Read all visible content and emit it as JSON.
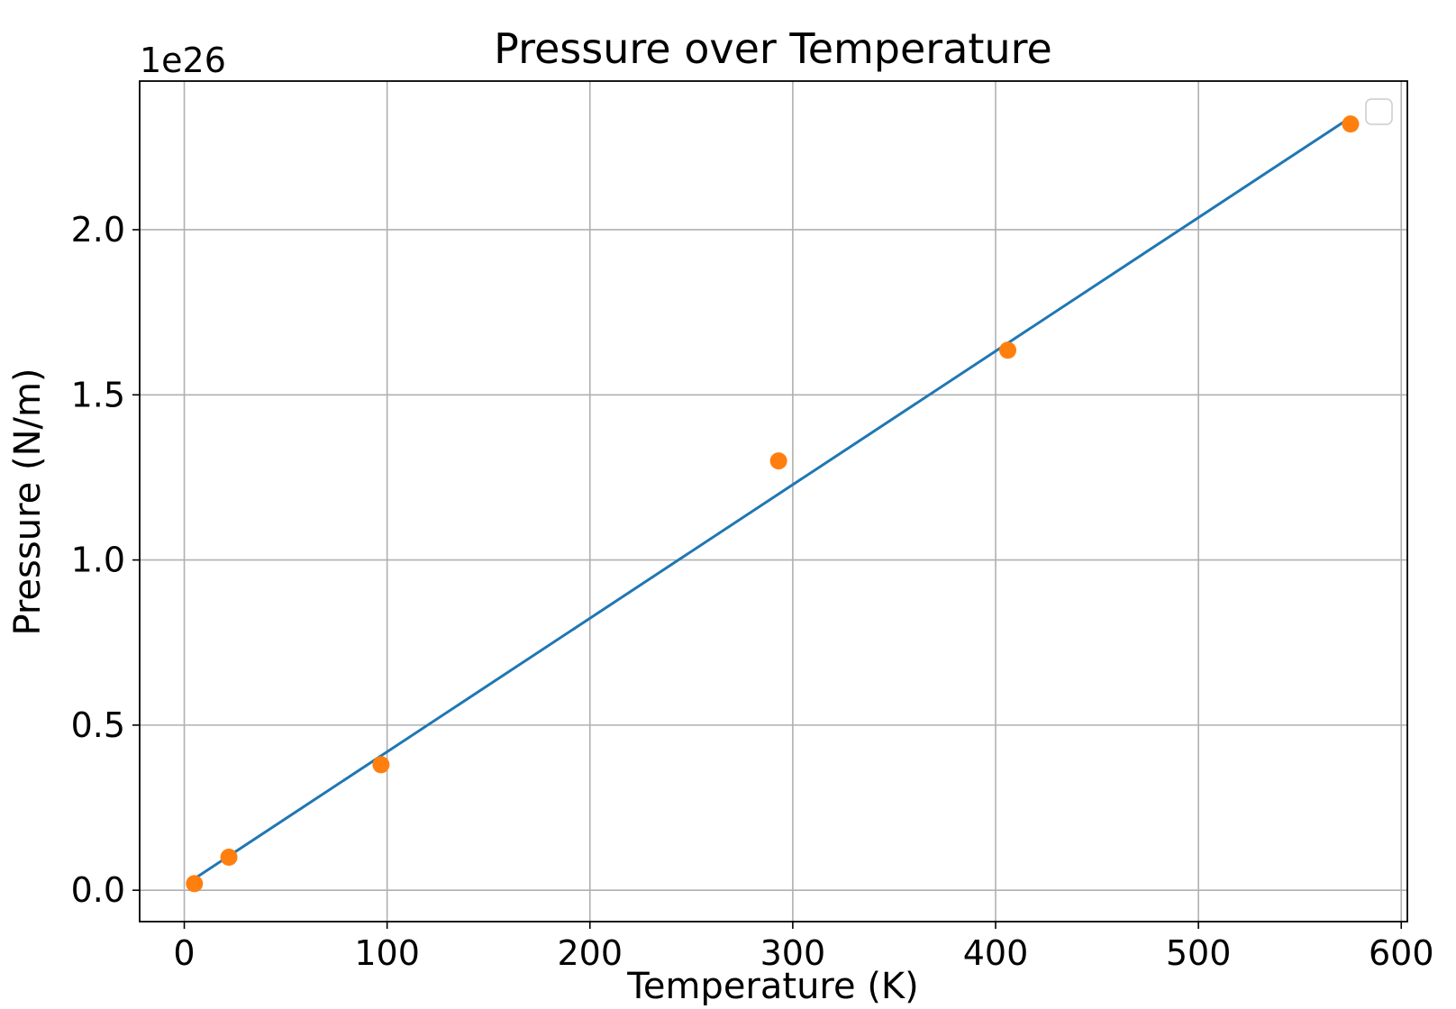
{
  "chart_data": {
    "type": "scatter",
    "title": "Pressure over Temperature",
    "xlabel": "Temperature (K)",
    "ylabel": "Pressure (N/m)",
    "y_offset_label": "1e26",
    "xlim": [
      -22,
      603
    ],
    "ylim": [
      -0.095,
      2.45
    ],
    "x_ticks": [
      0,
      100,
      200,
      300,
      400,
      500,
      600
    ],
    "x_tick_labels": [
      "0",
      "100",
      "200",
      "300",
      "400",
      "500",
      "600"
    ],
    "y_ticks": [
      0.0,
      0.5,
      1.0,
      1.5,
      2.0
    ],
    "y_tick_labels": [
      "0.0",
      "0.5",
      "1.0",
      "1.5",
      "2.0"
    ],
    "grid": true,
    "legend": {
      "placement": "top-right",
      "entries": []
    },
    "series": [
      {
        "kind": "line",
        "color": "#1f77b4",
        "x": [
          5,
          575
        ],
        "y": [
          0.035,
          2.34
        ]
      },
      {
        "kind": "scatter",
        "color": "#ff7f0e",
        "x": [
          5,
          22,
          97,
          293,
          406,
          575
        ],
        "y": [
          0.02,
          0.1,
          0.38,
          1.3,
          1.635,
          2.32
        ]
      }
    ]
  }
}
